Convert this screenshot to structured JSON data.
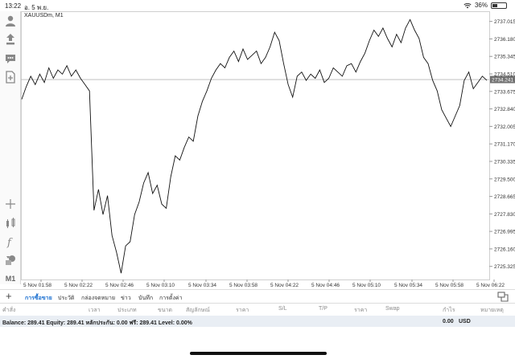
{
  "status_bar": {
    "time": "13:22",
    "date": "อ. 5 พ.ย.",
    "battery": "36%",
    "battery_level": 0.36
  },
  "chart": {
    "symbol_label": "XAUUSDm, M1",
    "current_price": "2734.241"
  },
  "toolbar": {
    "tools": [
      {
        "name": "account-icon"
      },
      {
        "name": "trade-icon"
      },
      {
        "name": "chat-icon"
      },
      {
        "name": "new-document-icon"
      },
      {
        "name": "crosshair-icon"
      },
      {
        "name": "indicators-icon"
      },
      {
        "name": "function-icon"
      },
      {
        "name": "objects-icon"
      }
    ],
    "timeframe": "M1"
  },
  "chart_data": {
    "type": "line",
    "yticks": [
      "2737.015",
      "2736.180",
      "2735.345",
      "2734.510",
      "2733.675",
      "2732.840",
      "2732.005",
      "2731.170",
      "2730.335",
      "2729.500",
      "2728.665",
      "2727.830",
      "2726.995",
      "2726.160",
      "2725.325"
    ],
    "ylim": [
      2724.7,
      2737.5
    ],
    "xticks": [
      "5 Nov 01:58",
      "5 Nov 02:22",
      "5 Nov 02:46",
      "5 Nov 03:10",
      "5 Nov 03:34",
      "5 Nov 03:58",
      "5 Nov 04:22",
      "5 Nov 04:46",
      "5 Nov 05:10",
      "5 Nov 05:34",
      "5 Nov 05:58",
      "5 Nov 06:22"
    ],
    "current_level": 2734.241,
    "y": [
      2733.3,
      2733.9,
      2734.4,
      2734.0,
      2734.5,
      2734.1,
      2734.8,
      2734.3,
      2734.7,
      2734.5,
      2734.9,
      2734.4,
      2734.7,
      2734.3,
      2734.0,
      2733.7,
      2728.0,
      2729.0,
      2727.8,
      2728.7,
      2726.8,
      2726.0,
      2725.0,
      2726.3,
      2726.5,
      2727.8,
      2728.4,
      2729.3,
      2729.8,
      2728.8,
      2729.2,
      2728.3,
      2728.1,
      2729.6,
      2730.6,
      2730.4,
      2731.0,
      2731.5,
      2731.3,
      2732.5,
      2733.2,
      2733.7,
      2734.3,
      2734.7,
      2735.0,
      2734.8,
      2735.3,
      2735.6,
      2735.1,
      2735.7,
      2735.2,
      2735.4,
      2735.6,
      2735.0,
      2735.3,
      2735.8,
      2736.5,
      2736.1,
      2735.0,
      2734.0,
      2733.4,
      2734.4,
      2734.6,
      2734.2,
      2734.5,
      2734.3,
      2734.7,
      2734.1,
      2734.3,
      2734.8,
      2734.6,
      2734.4,
      2734.9,
      2735.0,
      2734.6,
      2735.1,
      2735.5,
      2736.1,
      2736.6,
      2736.3,
      2736.7,
      2736.2,
      2735.8,
      2736.4,
      2736.0,
      2736.7,
      2737.1,
      2736.6,
      2736.2,
      2735.3,
      2735.0,
      2734.2,
      2733.7,
      2732.8,
      2732.4,
      2732.0,
      2732.5,
      2733.0,
      2734.2,
      2734.6,
      2733.8,
      2734.1,
      2734.4,
      2734.2
    ]
  },
  "tabs": [
    "การซื้อขาย",
    "ประวัติ",
    "กล่องจดหมาย",
    "ข่าว",
    "บันทึก",
    "การตั้งค่า"
  ],
  "columns": [
    "คำสั่ง",
    "เวลา",
    "ประเภท",
    "ขนาด",
    "สัญลักษณ์",
    "ราคา",
    "S/L",
    "T/P",
    "ราคา",
    "Swap",
    "กำไร",
    "หมายเหตุ"
  ],
  "balance": {
    "text": "Balance: 289.41 Equity: 289.41 หลักประกัน: 0.00 ฟรี: 289.41 Level: 0.00%",
    "profit": "0.00",
    "currency": "USD"
  }
}
